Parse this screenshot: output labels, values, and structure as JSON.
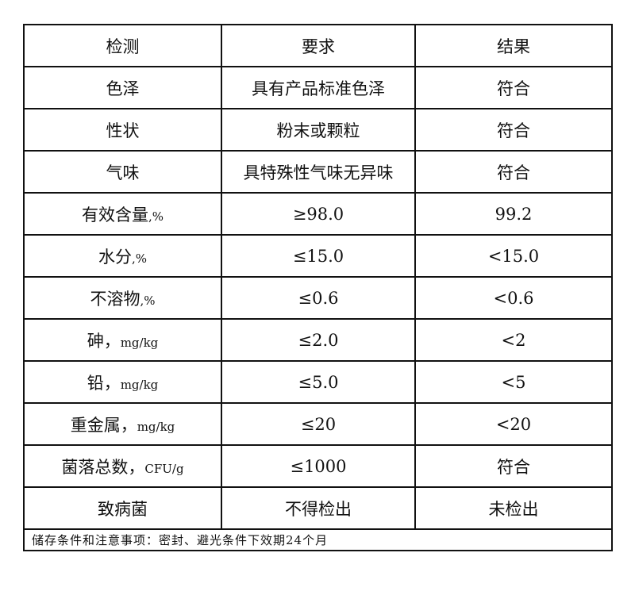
{
  "header": [
    "检测",
    "要求",
    "结果"
  ],
  "rows": [
    {
      "item": "色泽",
      "unit": "",
      "requirement": "具有产品标准色泽",
      "result": "符合"
    },
    {
      "item": "性状",
      "unit": "",
      "requirement": "粉末或颗粒",
      "result": "符合"
    },
    {
      "item": "气味",
      "unit": "",
      "requirement": "具特殊性气味无异味",
      "result": "符合"
    },
    {
      "item": "有效含量",
      "unit": ",%",
      "requirement": "≥98.0",
      "result": "99.2"
    },
    {
      "item": "水分",
      "unit": ",%",
      "requirement": "≤15.0",
      "result": "<15.0"
    },
    {
      "item": "不溶物",
      "unit": ",%",
      "requirement": "≤0.6",
      "result": "<0.6"
    },
    {
      "item": "砷，",
      "unit": "mg/kg",
      "requirement": "≤2.0",
      "result": "<2"
    },
    {
      "item": "铅，",
      "unit": "mg/kg",
      "requirement": "≤5.0",
      "result": "<5"
    },
    {
      "item": "重金属，",
      "unit": "mg/kg",
      "requirement": "≤20",
      "result": "<20"
    },
    {
      "item": "菌落总数，",
      "unit": "CFU/g",
      "requirement": "≤1000",
      "result": "符合"
    },
    {
      "item": "致病菌",
      "unit": "",
      "requirement": "不得检出",
      "result": "未检出"
    }
  ],
  "footer": "储存条件和注意事项：密封、避光条件下效期24个月"
}
